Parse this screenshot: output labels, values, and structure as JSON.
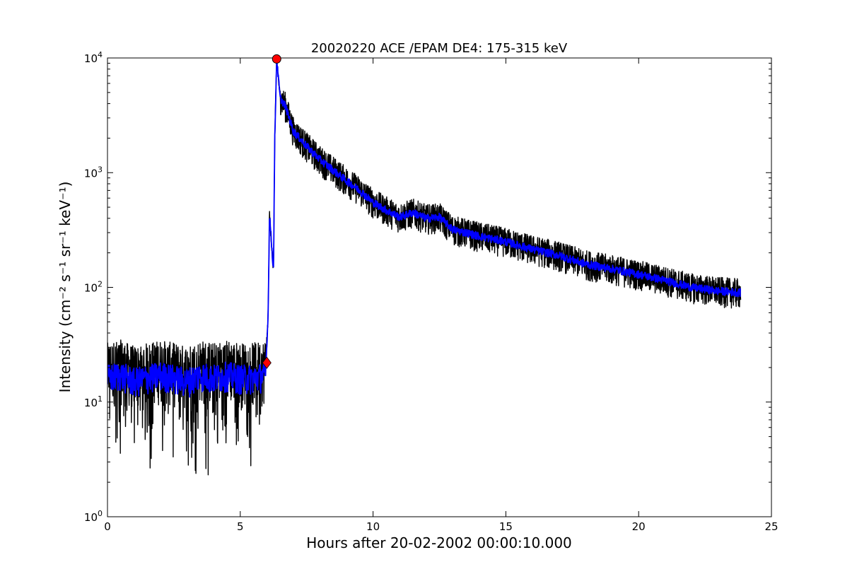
{
  "chart_data": {
    "type": "line",
    "title": "20020220 ACE /EPAM DE4: 175-315 keV",
    "xlabel": "Hours after 20-02-2002 00:00:10.000",
    "ylabel": "Intensity (cm⁻² s⁻¹ sr⁻¹ keV⁻¹)",
    "xlim": [
      0,
      25
    ],
    "ylim": [
      1,
      10000
    ],
    "yscale": "log",
    "grid": false,
    "xticks": [
      0,
      5,
      10,
      15,
      20,
      25
    ],
    "xtick_labels": [
      "0",
      "5",
      "10",
      "15",
      "20",
      "25"
    ],
    "yticks": [
      1,
      10,
      100,
      1000,
      10000
    ],
    "ytick_labels": [
      {
        "base": "10",
        "exp": "0"
      },
      {
        "base": "10",
        "exp": "1"
      },
      {
        "base": "10",
        "exp": "2"
      },
      {
        "base": "10",
        "exp": "3"
      },
      {
        "base": "10",
        "exp": "4"
      }
    ],
    "series": [
      {
        "color": "#000000",
        "style": "noisy-raw",
        "x": [
          0,
          0.5,
          1,
          1.5,
          2,
          2.5,
          3,
          3.5,
          4,
          4.5,
          5,
          5.5,
          5.95,
          6.05,
          6.1,
          6.2,
          6.25,
          6.3,
          6.37,
          6.5,
          6.7,
          7,
          7.5,
          8,
          8.5,
          9,
          9.5,
          10,
          10.5,
          11,
          11.5,
          12,
          12.5,
          13,
          13.5,
          14,
          15,
          16,
          17,
          18,
          19,
          20,
          21,
          22,
          23,
          23.85
        ],
        "y": [
          16,
          17,
          15,
          16,
          17,
          16,
          15,
          17,
          16,
          17,
          16,
          16,
          17,
          60,
          450,
          200,
          140,
          2000,
          9800,
          4500,
          3800,
          2300,
          1700,
          1300,
          1050,
          850,
          700,
          550,
          470,
          410,
          450,
          400,
          410,
          320,
          300,
          280,
          250,
          215,
          190,
          160,
          145,
          130,
          115,
          100,
          93,
          90
        ]
      },
      {
        "color": "#0000ff",
        "style": "smoothed",
        "x": [
          0,
          0.5,
          1,
          1.5,
          2,
          2.5,
          3,
          3.5,
          4,
          4.5,
          5,
          5.5,
          5.95,
          6.05,
          6.1,
          6.2,
          6.25,
          6.3,
          6.37,
          6.5,
          6.7,
          7,
          7.5,
          8,
          8.5,
          9,
          9.5,
          10,
          10.5,
          11,
          11.5,
          12,
          12.5,
          13,
          13.5,
          14,
          15,
          16,
          17,
          18,
          19,
          20,
          21,
          22,
          23,
          23.85
        ],
        "y": [
          16,
          17,
          15,
          16,
          17,
          16,
          15,
          17,
          16,
          17,
          16,
          16,
          17,
          60,
          450,
          200,
          140,
          2000,
          9800,
          4500,
          3800,
          2300,
          1700,
          1300,
          1050,
          850,
          700,
          550,
          470,
          410,
          450,
          400,
          410,
          320,
          300,
          280,
          250,
          215,
          190,
          160,
          145,
          130,
          115,
          100,
          93,
          90
        ]
      }
    ],
    "markers": [
      {
        "x": 6.0,
        "y": 22,
        "color": "#ff0000",
        "shape": "diamond"
      },
      {
        "x": 6.37,
        "y": 9800,
        "color": "#ff0000",
        "shape": "circle"
      }
    ]
  }
}
